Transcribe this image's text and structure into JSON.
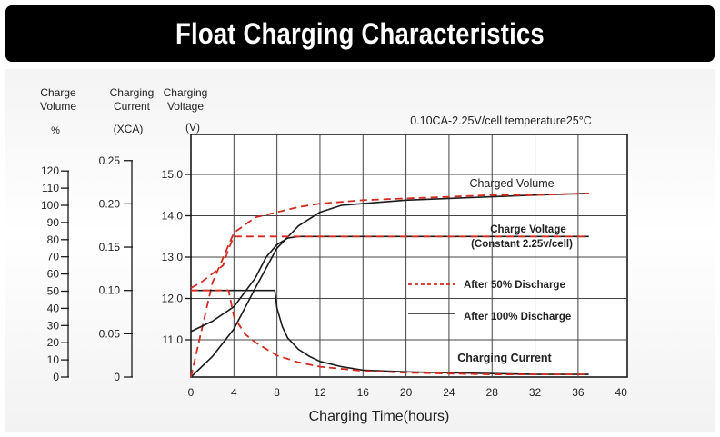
{
  "title": "Float Charging Characteristics",
  "chart_data": {
    "type": "line",
    "annotation": "0.10CA-2.25V/cell   temperature25°C",
    "xlabel": "Charging Time(hours)",
    "xticks": [
      0,
      4,
      8,
      12,
      16,
      20,
      24,
      28,
      32,
      36,
      40
    ],
    "xlim": [
      0,
      40
    ],
    "grid": true,
    "axes": {
      "volume": {
        "header": [
          "Charge",
          "Volume"
        ],
        "unit": "%",
        "ticks": [
          0,
          10,
          20,
          30,
          40,
          50,
          60,
          70,
          80,
          90,
          100,
          110,
          120
        ],
        "range": [
          0,
          120
        ]
      },
      "current": {
        "header": [
          "Charging",
          "Current"
        ],
        "unit": "(XCA)",
        "ticks": [
          "0",
          "0.05",
          "0.10",
          "0.15",
          "0.20",
          "0.25"
        ],
        "range": [
          0,
          0.25
        ]
      },
      "voltage": {
        "header": [
          "Charging",
          "Voltage"
        ],
        "unit": "(V)",
        "ticks": [
          "11.0",
          "12.0",
          "13.0",
          "14.0",
          "15.0"
        ],
        "range": [
          10.4,
          15.3
        ]
      }
    },
    "legend": {
      "position": "right-middle",
      "entries": [
        {
          "label": "After 50% Discharge",
          "style": "dashed",
          "color": "#d42a1f"
        },
        {
          "label": "After 100% Discharge",
          "style": "solid",
          "color": "#1a1a1a"
        }
      ]
    },
    "curve_labels": [
      {
        "text": "Charged Volume"
      },
      {
        "text": "Charge Voltage"
      },
      {
        "text": "(Constant 2.25v/cell)"
      },
      {
        "text": "Charging Current"
      }
    ],
    "series": [
      {
        "axis": "volume",
        "style": "solid",
        "color": "#1a1a1a",
        "x": [
          0,
          2,
          4,
          6,
          8,
          10,
          12,
          14,
          16,
          20,
          24,
          28,
          32,
          37
        ],
        "y": [
          0,
          12,
          28,
          52,
          75,
          88,
          96,
          100,
          101,
          103,
          104,
          105,
          106,
          107
        ]
      },
      {
        "axis": "volume",
        "style": "dashed",
        "color": "#d42a1f",
        "x": [
          0,
          2,
          4,
          6,
          8,
          10,
          12,
          16,
          20,
          24,
          28,
          32,
          37
        ],
        "y": [
          0,
          55,
          84,
          93,
          96,
          99,
          101,
          103,
          104,
          105,
          106,
          106,
          107
        ]
      },
      {
        "axis": "voltage",
        "style": "solid",
        "color": "#1a1a1a",
        "x": [
          0,
          2,
          4,
          6,
          7,
          8,
          9,
          10,
          12,
          14,
          20,
          37
        ],
        "y": [
          11.2,
          11.45,
          11.8,
          12.5,
          13.0,
          13.3,
          13.46,
          13.5,
          13.5,
          13.5,
          13.5,
          13.5
        ]
      },
      {
        "axis": "voltage",
        "style": "dashed",
        "color": "#d42a1f",
        "x": [
          0,
          1,
          2,
          3,
          3.5,
          4,
          6,
          8,
          12,
          20,
          37
        ],
        "y": [
          12.25,
          12.4,
          12.6,
          12.8,
          13.2,
          13.5,
          13.5,
          13.5,
          13.5,
          13.5,
          13.5
        ]
      },
      {
        "axis": "current",
        "style": "solid",
        "color": "#1a1a1a",
        "x": [
          0,
          2,
          4,
          6,
          7.8,
          8,
          8.5,
          9,
          10,
          11,
          12,
          14,
          16,
          20,
          24,
          28,
          32,
          37
        ],
        "y": [
          0.1,
          0.1,
          0.1,
          0.1,
          0.1,
          0.08,
          0.058,
          0.045,
          0.032,
          0.024,
          0.018,
          0.012,
          0.008,
          0.006,
          0.005,
          0.004,
          0.003,
          0.003
        ]
      },
      {
        "axis": "current",
        "style": "dashed",
        "color": "#d42a1f",
        "x": [
          0,
          1,
          2,
          3,
          3.5,
          4,
          5,
          6,
          8,
          10,
          12,
          16,
          20,
          24,
          28,
          32,
          37
        ],
        "y": [
          0.1,
          0.1,
          0.1,
          0.1,
          0.1,
          0.07,
          0.05,
          0.04,
          0.025,
          0.017,
          0.012,
          0.007,
          0.005,
          0.004,
          0.003,
          0.003,
          0.003
        ]
      }
    ]
  }
}
